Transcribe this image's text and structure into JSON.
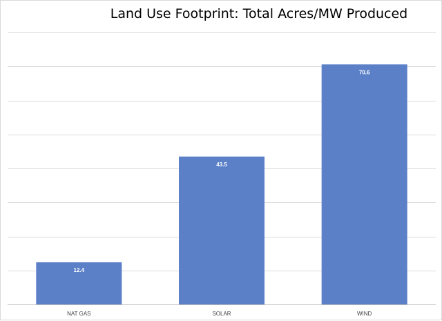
{
  "chart_data": {
    "type": "bar",
    "title": "Land Use Footprint: Total Acres/MW Produced",
    "categories": [
      "NAT GAS",
      "SOLAR",
      "WIND"
    ],
    "values": [
      12.4,
      43.5,
      70.6
    ],
    "data_labels": [
      "12.4",
      "43.5",
      "70.6"
    ],
    "xlabel": "",
    "ylabel": "",
    "ylim": [
      0,
      80
    ],
    "ytick_step": 10,
    "grid": true,
    "legend": "none",
    "bar_color": "#5b80c8"
  }
}
